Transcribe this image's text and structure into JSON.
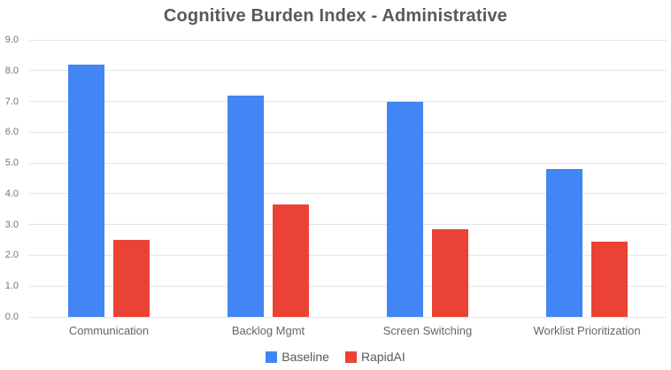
{
  "chart_data": {
    "type": "bar",
    "title": "Cognitive Burden Index - Administrative",
    "categories": [
      "Communication",
      "Backlog Mgmt",
      "Screen Switching",
      "Worklist Prioritization"
    ],
    "series": [
      {
        "name": "Baseline",
        "color": "#4285f4",
        "values": [
          8.2,
          7.2,
          7.0,
          4.8
        ]
      },
      {
        "name": "RapidAI",
        "color": "#ea4335",
        "values": [
          2.5,
          3.65,
          2.85,
          2.45
        ]
      }
    ],
    "xlabel": "",
    "ylabel": "",
    "ylim": [
      0,
      9
    ],
    "ytick_step": 1,
    "ytick_decimals": 1,
    "grid": true,
    "legend_position": "bottom"
  },
  "styles": {
    "background": "#ffffff",
    "gridline_color": "#e6e6e6",
    "title_color": "#595959",
    "ytick_color": "#757575",
    "category_label_color": "#666666",
    "legend_text_color": "#595959"
  }
}
